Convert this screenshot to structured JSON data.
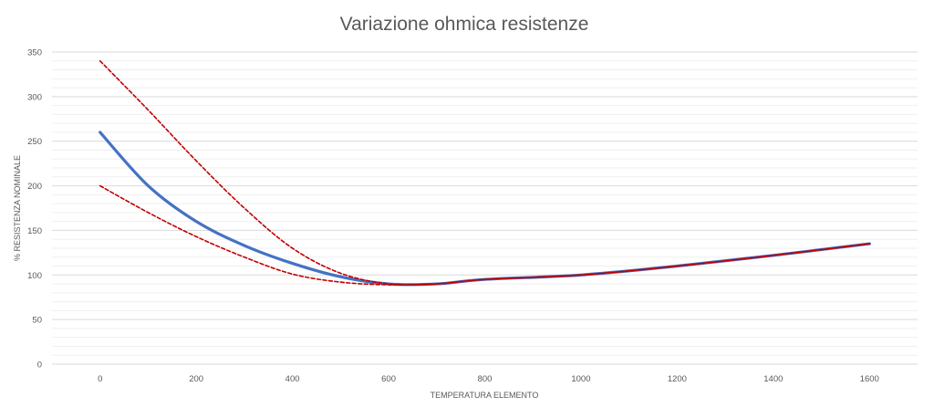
{
  "chart_data": {
    "type": "line",
    "title": "Variazione ohmica resistenze",
    "xlabel": "TEMPERATURA ELEMENTO",
    "ylabel": "% RESISTENZA NOMINALE",
    "xlim": [
      -100,
      1700
    ],
    "ylim": [
      0,
      350
    ],
    "x_ticks": [
      0,
      200,
      400,
      600,
      800,
      1000,
      1200,
      1400,
      1600
    ],
    "y_ticks": [
      0,
      50,
      100,
      150,
      200,
      250,
      300,
      350
    ],
    "grid": true,
    "minor_grid": true,
    "legend": "none",
    "series": [
      {
        "style": "solid",
        "color": "#4472c4",
        "points": [
          [
            0,
            260
          ],
          [
            100,
            200
          ],
          [
            200,
            160
          ],
          [
            300,
            133
          ],
          [
            400,
            113
          ],
          [
            500,
            98
          ],
          [
            600,
            90
          ],
          [
            700,
            90
          ],
          [
            800,
            95
          ],
          [
            1000,
            100
          ],
          [
            1200,
            110
          ],
          [
            1400,
            122
          ],
          [
            1600,
            135
          ]
        ]
      },
      {
        "style": "dashed",
        "color": "#c00000",
        "points": [
          [
            0,
            340
          ],
          [
            100,
            285
          ],
          [
            200,
            228
          ],
          [
            300,
            175
          ],
          [
            400,
            130
          ],
          [
            500,
            102
          ],
          [
            600,
            90
          ],
          [
            700,
            90
          ],
          [
            800,
            95
          ],
          [
            1000,
            100
          ],
          [
            1200,
            110
          ],
          [
            1400,
            122
          ],
          [
            1600,
            135
          ]
        ]
      },
      {
        "style": "dashed",
        "color": "#c00000",
        "points": [
          [
            0,
            200
          ],
          [
            100,
            170
          ],
          [
            200,
            143
          ],
          [
            300,
            120
          ],
          [
            400,
            101
          ],
          [
            500,
            92
          ],
          [
            600,
            89
          ],
          [
            700,
            90
          ],
          [
            800,
            95
          ],
          [
            1000,
            100
          ],
          [
            1200,
            110
          ],
          [
            1400,
            122
          ],
          [
            1600,
            135
          ]
        ]
      }
    ]
  }
}
